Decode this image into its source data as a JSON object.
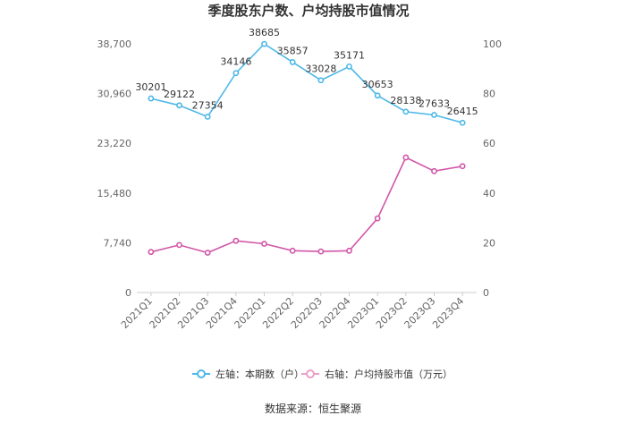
{
  "chart_data": {
    "type": "line",
    "title": "季度股东户数、户均持股市值情况",
    "categories": [
      "2021Q1",
      "2021Q2",
      "2021Q3",
      "2021Q4",
      "2022Q1",
      "2022Q2",
      "2022Q3",
      "2022Q4",
      "2023Q1",
      "2023Q2",
      "2023Q3",
      "2023Q4"
    ],
    "series": [
      {
        "name": "左轴：本期数（户）",
        "axis": "left",
        "color": "#4db8e8",
        "values": [
          30201,
          29122,
          27354,
          34146,
          38685,
          35857,
          33028,
          35171,
          30653,
          28138,
          27633,
          26415
        ],
        "labels": [
          "30201",
          "29122",
          "27354",
          "34146",
          "38685",
          "35857",
          "33028",
          "35171",
          "30653",
          "28138",
          "27633",
          "26415"
        ]
      },
      {
        "name": "右轴：户均持股市值（万元）",
        "axis": "right",
        "color": "#d257a8",
        "values": [
          16.3,
          19.1,
          16.0,
          20.8,
          19.6,
          16.8,
          16.5,
          16.8,
          29.8,
          54.3,
          48.8,
          50.8
        ]
      }
    ],
    "left_axis": {
      "ylim": [
        0,
        38700
      ],
      "ticks": [
        "0",
        "7,740",
        "15,480",
        "23,220",
        "30,960",
        "38,700"
      ]
    },
    "right_axis": {
      "ylim": [
        0,
        100
      ],
      "ticks": [
        "0",
        "20",
        "40",
        "60",
        "80",
        "100"
      ]
    },
    "legend_position": "bottom",
    "grid": false
  },
  "source_text": "数据来源：恒生聚源"
}
